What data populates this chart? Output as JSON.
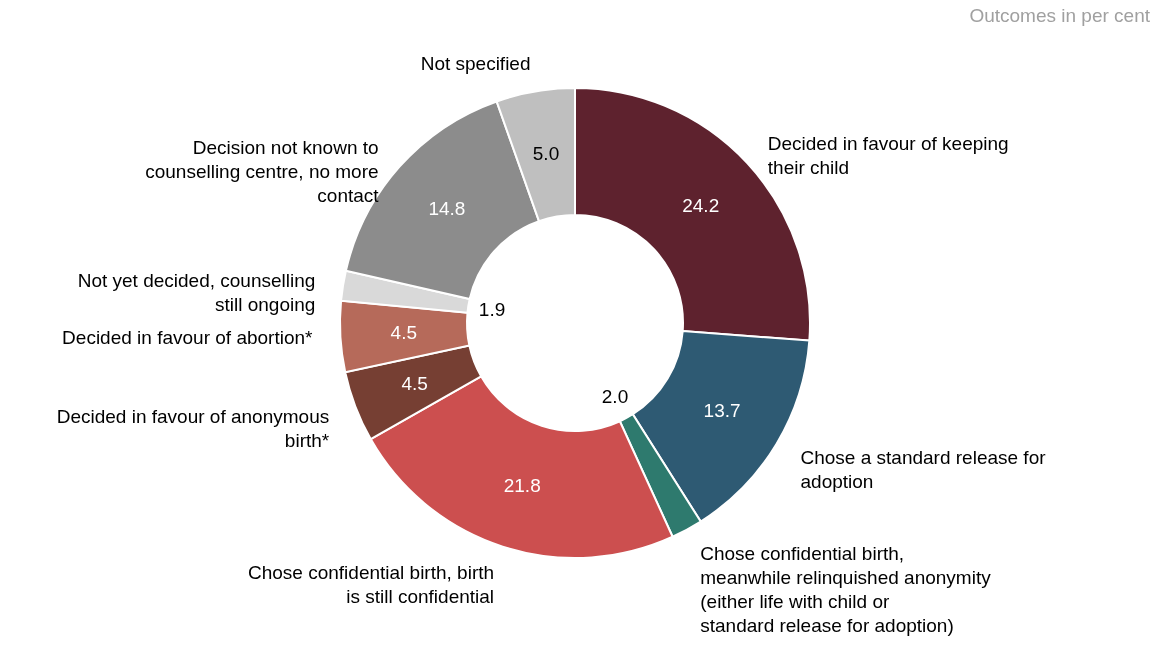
{
  "chart_data": {
    "type": "donut",
    "categories": [
      "Decided in favour of keeping their child",
      "Chose a standard release for adoption",
      "Chose confidential birth, meanwhile relinquished anonymity (either life with child or standard release for adoption)",
      "Chose confidential birth, birth is still confidential",
      "Decided in favour of anonymous birth*",
      "Decided in favour of abortion*",
      "Not yet decided, counselling still ongoing",
      "Decision not known to counselling centre, no more contact",
      "Not specified"
    ],
    "values": [
      24.2,
      13.7,
      2.0,
      21.8,
      4.5,
      4.5,
      1.9,
      14.8,
      5.0
    ],
    "colors": [
      "#5e222e",
      "#2e5a73",
      "#2e7a6e",
      "#cc4f4f",
      "#763f33",
      "#b66a5a",
      "#d9d9d9",
      "#8c8c8c",
      "#bfbfbf"
    ],
    "value_labels": [
      "24.2",
      "13.7",
      "2.0",
      "21.8",
      "4.5",
      "4.5",
      "1.9",
      "14.8",
      "5.0"
    ],
    "legend": false,
    "annotations": [
      "Outcomes in per cent"
    ]
  }
}
